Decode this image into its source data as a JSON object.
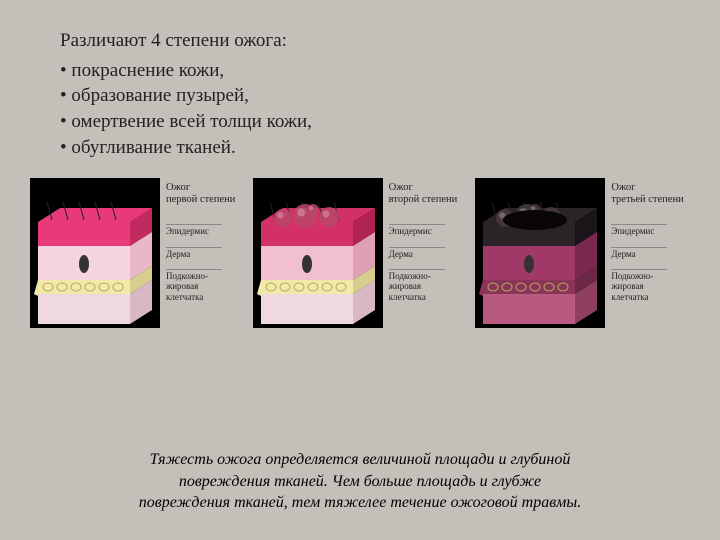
{
  "text": {
    "heading": "Различают 4 степени ожога:",
    "bullets": [
      "покраснение кожи,",
      "образование пузырей,",
      "омертвение всей толщи кожи,",
      "обугливание тканей."
    ],
    "footer_l1": "Тяжесть ожога определяется величиной площади и глубиной",
    "footer_l2": "повреждения тканей. Чем больше площадь и глубже",
    "footer_l3": "повреждения тканей, тем тяжелее течение ожоговой травмы."
  },
  "layer_labels": {
    "epidermis": "Эпидермис",
    "dermis": "Дерма",
    "subcut": "Подкожно-жировая клетчатка"
  },
  "panels": [
    {
      "title": "Ожог первой степени",
      "top_color": "#e83a7a",
      "top_shade": "#c22a5f",
      "mid_color": "#f6d4df",
      "mid_shade": "#e8b8c6",
      "fat_color": "#f2e9a8",
      "fat_shade": "#d6cd8e",
      "deep_color": "#f0d8e0",
      "deep_shade": "#d8b8c4",
      "blisters": false,
      "charred": false
    },
    {
      "title": "Ожог второй степени",
      "top_color": "#d43068",
      "top_shade": "#b02250",
      "mid_color": "#f0c0d0",
      "mid_shade": "#e0a0b4",
      "fat_color": "#f2e9a8",
      "fat_shade": "#d6cd8e",
      "deep_color": "#f0d8e0",
      "deep_shade": "#d8b8c4",
      "blisters": true,
      "blister_color": "#b84868",
      "charred": false
    },
    {
      "title": "Ожог третьей степени",
      "top_color": "#2a2428",
      "top_shade": "#1a1518",
      "mid_color": "#a03868",
      "mid_shade": "#7a2850",
      "fat_color": "#8a3458",
      "fat_shade": "#6a2844",
      "deep_color": "#b85a80",
      "deep_shade": "#90405f",
      "blisters": true,
      "blister_color": "#483a42",
      "charred": true
    }
  ],
  "style": {
    "bg": "#c4bfb9",
    "text_color": "#222222",
    "heading_fontsize": 19,
    "footer_fontsize": 16,
    "label_fontsize": 9,
    "cube_w": 130,
    "cube_h": 150,
    "hair_color": "#222222"
  }
}
